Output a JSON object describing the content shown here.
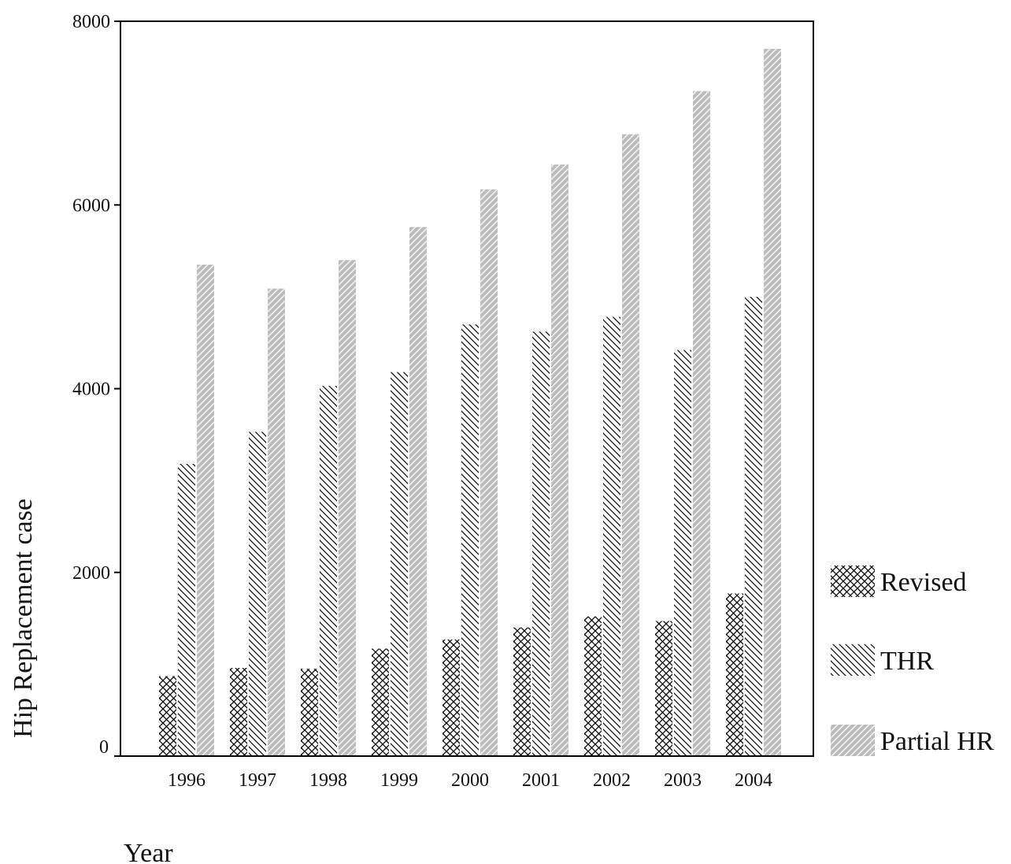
{
  "chart_data": {
    "type": "bar",
    "title": "",
    "xlabel": "Year",
    "ylabel": "Hip Replacement case",
    "ylim": [
      0,
      8000
    ],
    "yticks": [
      0,
      2000,
      4000,
      6000,
      8000
    ],
    "categories": [
      "1996",
      "1997",
      "1998",
      "1999",
      "2000",
      "2001",
      "2002",
      "2003",
      "2004"
    ],
    "series": [
      {
        "name": "Revised",
        "pattern": "crosshatch",
        "color": "#000000",
        "values": [
          870,
          960,
          950,
          1170,
          1270,
          1400,
          1520,
          1470,
          1770
        ]
      },
      {
        "name": "THR",
        "pattern": "back-diagonal",
        "color": "#000000",
        "values": [
          3180,
          3530,
          4030,
          4180,
          4700,
          4620,
          4780,
          4420,
          5000
        ]
      },
      {
        "name": "Partial HR",
        "pattern": "forward-diagonal",
        "color": "#bdbdbd",
        "values": [
          5350,
          5090,
          5400,
          5760,
          6170,
          6440,
          6770,
          7240,
          7700
        ]
      }
    ],
    "legend": "right",
    "grid": false
  }
}
